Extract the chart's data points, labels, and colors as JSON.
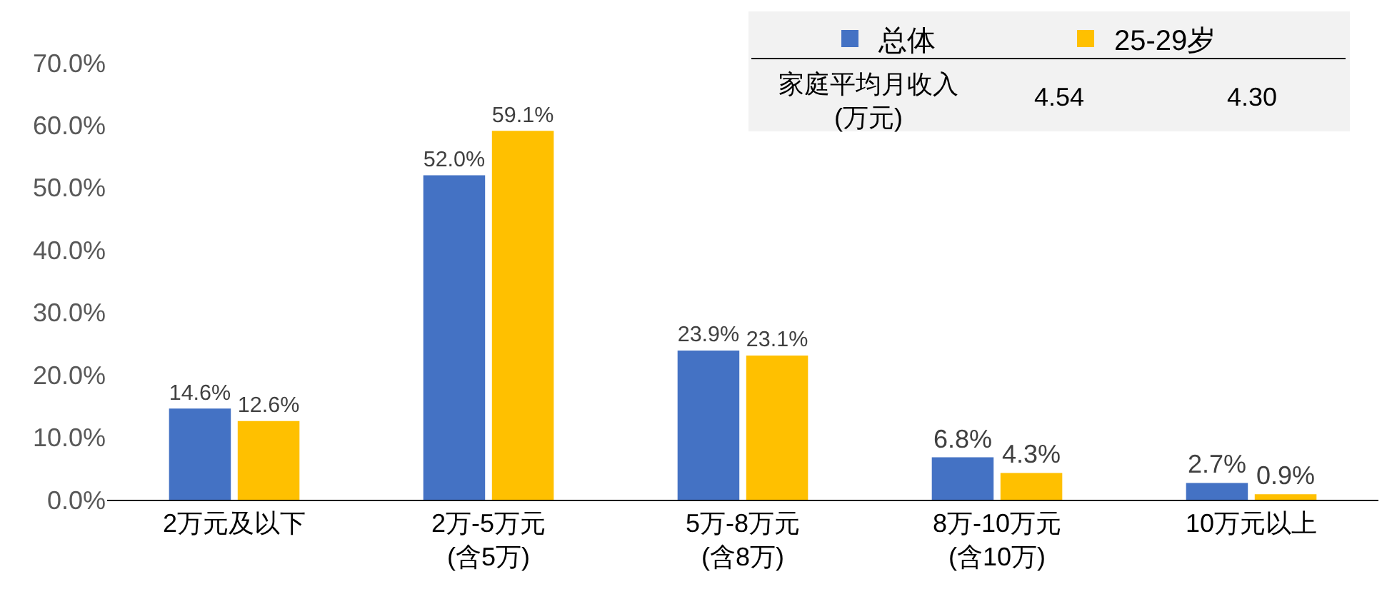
{
  "chart_data": {
    "type": "bar",
    "categories": [
      "2万元及以下",
      "2万-5万元\n(含5万)",
      "5万-8万元\n(含8万)",
      "8万-10万元\n(含10万)",
      "10万元以上"
    ],
    "series": [
      {
        "name": "总体",
        "color": "#4472c4",
        "values": [
          14.6,
          52.0,
          23.9,
          6.8,
          2.7
        ],
        "value_labels": [
          "14.6%",
          "52.0%",
          "23.9%",
          "6.8%",
          "2.7%"
        ]
      },
      {
        "name": "25-29岁",
        "color": "#ffc000",
        "values": [
          12.6,
          59.1,
          23.1,
          4.3,
          0.9
        ],
        "value_labels": [
          "12.6%",
          "59.1%",
          "23.1%",
          "4.3%",
          "0.9%"
        ]
      }
    ],
    "ylim": [
      0,
      70
    ],
    "yticks": [
      {
        "value": 0,
        "label": "0.0%"
      },
      {
        "value": 10,
        "label": "10.0%"
      },
      {
        "value": 20,
        "label": "20.0%"
      },
      {
        "value": 30,
        "label": "30.0%"
      },
      {
        "value": 40,
        "label": "40.0%"
      },
      {
        "value": 50,
        "label": "50.0%"
      },
      {
        "value": 60,
        "label": "60.0%"
      },
      {
        "value": 70,
        "label": "70.0%"
      }
    ],
    "grid": false,
    "legend": "top right",
    "annotations": [
      "家庭平均月收入\n(万元)",
      "4.54",
      "4.30"
    ]
  }
}
